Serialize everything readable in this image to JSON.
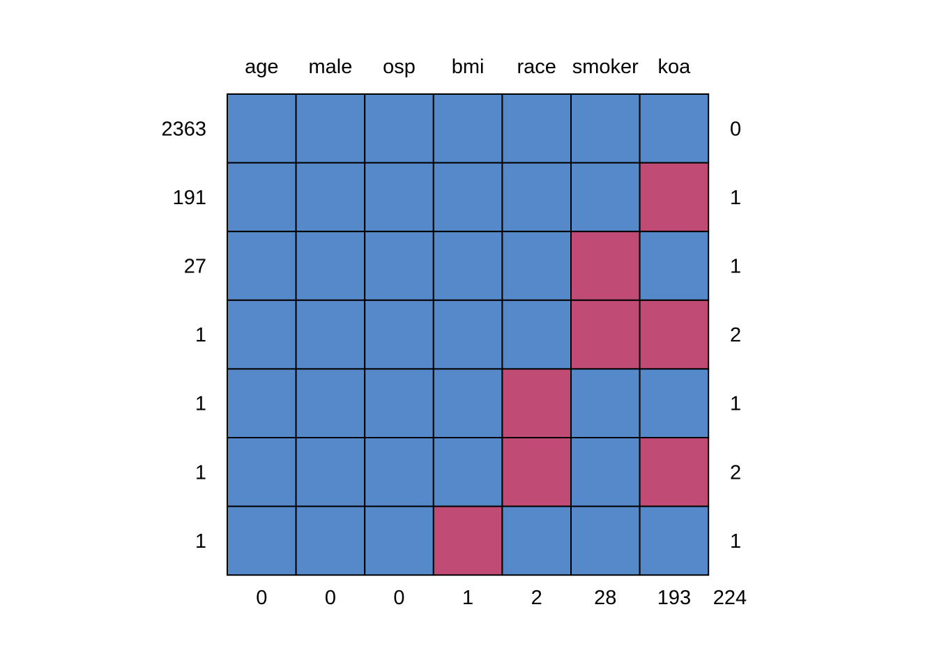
{
  "chart_data": {
    "type": "heatmap",
    "variables": [
      "age",
      "male",
      "osp",
      "bmi",
      "race",
      "smoker",
      "koa"
    ],
    "patterns": [
      {
        "count": "2363",
        "missing_flags": [
          0,
          0,
          0,
          0,
          0,
          0,
          0
        ],
        "n_missing": "0"
      },
      {
        "count": "191",
        "missing_flags": [
          0,
          0,
          0,
          0,
          0,
          0,
          1
        ],
        "n_missing": "1"
      },
      {
        "count": "27",
        "missing_flags": [
          0,
          0,
          0,
          0,
          0,
          1,
          0
        ],
        "n_missing": "1"
      },
      {
        "count": "1",
        "missing_flags": [
          0,
          0,
          0,
          0,
          0,
          1,
          1
        ],
        "n_missing": "2"
      },
      {
        "count": "1",
        "missing_flags": [
          0,
          0,
          0,
          0,
          1,
          0,
          0
        ],
        "n_missing": "1"
      },
      {
        "count": "1",
        "missing_flags": [
          0,
          0,
          0,
          0,
          1,
          0,
          1
        ],
        "n_missing": "2"
      },
      {
        "count": "1",
        "missing_flags": [
          0,
          0,
          0,
          1,
          0,
          0,
          0
        ],
        "n_missing": "1"
      }
    ],
    "column_missing_totals": [
      "0",
      "0",
      "0",
      "1",
      "2",
      "28",
      "193"
    ],
    "total_missing": "224",
    "colors": {
      "observed": "#5589C9",
      "missing": "#C04C75"
    }
  }
}
